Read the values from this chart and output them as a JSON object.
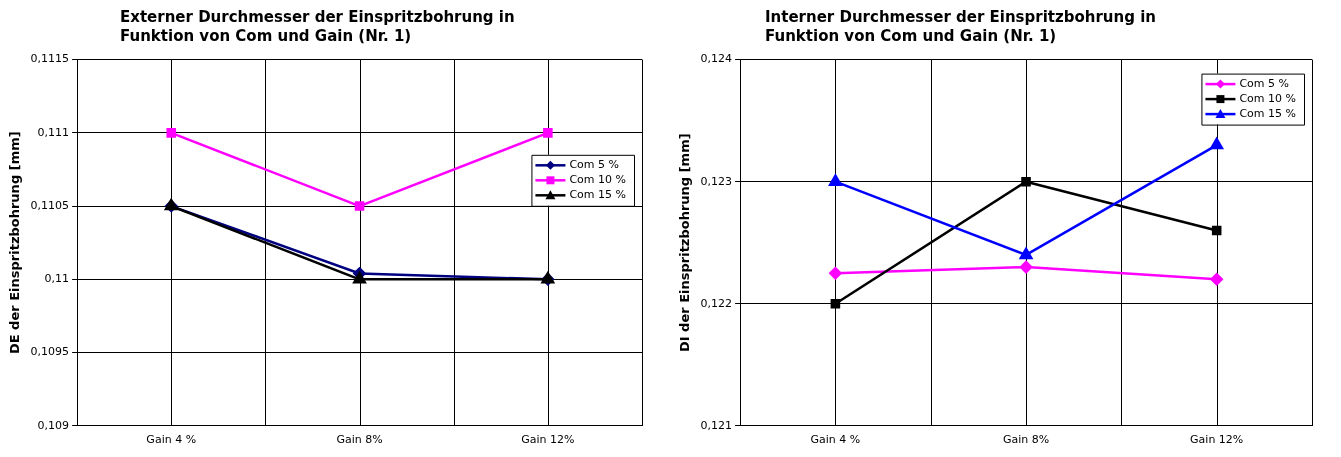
{
  "chart_data": [
    {
      "type": "line",
      "title": "Externer Durchmesser der Einspritzbohrung in Funktion von Com und Gain (Nr. 1)",
      "ylabel": "DE der Einspritzbohrung [mm]",
      "categories": [
        "Gain 4 %",
        "Gain 8%",
        "Gain 12%"
      ],
      "series": [
        {
          "name": "Com 5 %",
          "color": "#000080",
          "marker": "diamond",
          "values": [
            0.1105,
            0.11004,
            0.11
          ]
        },
        {
          "name": "Com 10 %",
          "color": "#ff00ff",
          "marker": "square",
          "values": [
            0.111,
            0.1105,
            0.111
          ]
        },
        {
          "name": "Com 15 %",
          "color": "#000000",
          "marker": "triangle",
          "values": [
            0.1105,
            0.11,
            0.11
          ]
        }
      ],
      "ylim": [
        0.109,
        0.1115
      ],
      "yticks": [
        {
          "value": 0.109,
          "label": "0,109"
        },
        {
          "value": 0.1095,
          "label": "0,1095"
        },
        {
          "value": 0.11,
          "label": "0,11"
        },
        {
          "value": 0.1105,
          "label": "0,1105"
        },
        {
          "value": 0.111,
          "label": "0,111"
        },
        {
          "value": 0.1115,
          "label": "0,1115"
        }
      ],
      "grid": true,
      "legend": "right"
    },
    {
      "type": "line",
      "title": "Interner Durchmesser der Einspritzbohrung in Funktion von Com und Gain (Nr. 1)",
      "ylabel": "DI der Einspritzbohrung [mm]",
      "categories": [
        "Gain 4 %",
        "Gain 8%",
        "Gain 12%"
      ],
      "series": [
        {
          "name": "Com 5 %",
          "color": "#ff00ff",
          "marker": "diamond",
          "values": [
            0.12225,
            0.1223,
            0.1222
          ]
        },
        {
          "name": "Com 10 %",
          "color": "#000000",
          "marker": "square",
          "values": [
            0.122,
            0.123,
            0.1226
          ]
        },
        {
          "name": "Com 15 %",
          "color": "#0000ff",
          "marker": "triangle",
          "values": [
            0.123,
            0.1224,
            0.1233
          ]
        }
      ],
      "ylim": [
        0.121,
        0.124
      ],
      "yticks": [
        {
          "value": 0.121,
          "label": "0,121"
        },
        {
          "value": 0.122,
          "label": "0,122"
        },
        {
          "value": 0.123,
          "label": "0,123"
        },
        {
          "value": 0.124,
          "label": "0,124"
        }
      ],
      "grid": true,
      "legend": "top right"
    }
  ]
}
